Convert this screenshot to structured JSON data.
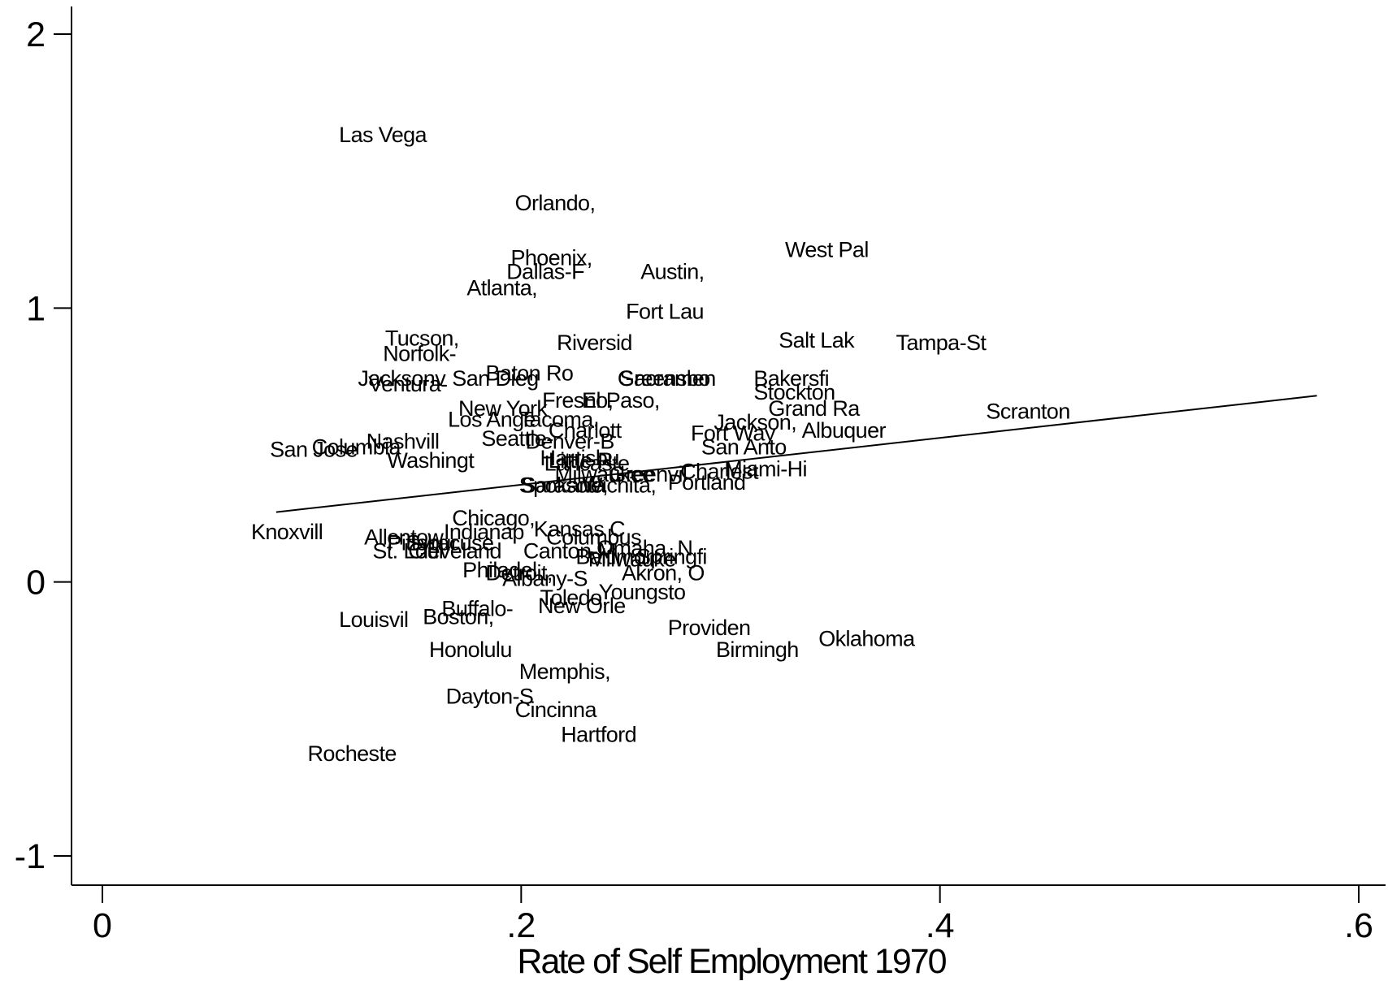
{
  "chart_data": {
    "type": "scatter",
    "xlabel": "Rate of Self Employment 1970",
    "ylabel": "",
    "xlim": [
      -0.014,
      0.612
    ],
    "ylim": [
      -1.11,
      2.1
    ],
    "xticks": [
      {
        "value": 0,
        "label": "0"
      },
      {
        "value": 0.2,
        "label": ".2"
      },
      {
        "value": 0.4,
        "label": ".4"
      },
      {
        "value": 0.6,
        "label": ".6"
      }
    ],
    "yticks": [
      {
        "value": -1,
        "label": "-1"
      },
      {
        "value": 0,
        "label": "0"
      },
      {
        "value": 1,
        "label": "1"
      },
      {
        "value": 2,
        "label": "2"
      }
    ],
    "fit_line": {
      "x": [
        0.083,
        0.58
      ],
      "y": [
        0.255,
        0.68
      ]
    },
    "points": [
      {
        "label": "Las Vega",
        "x": 0.113,
        "y": 1.633
      },
      {
        "label": "Orlando,",
        "x": 0.197,
        "y": 1.383
      },
      {
        "label": "West Pal",
        "x": 0.326,
        "y": 1.213
      },
      {
        "label": "Phoenix,",
        "x": 0.195,
        "y": 1.183
      },
      {
        "label": "Dallas-F",
        "x": 0.193,
        "y": 1.133
      },
      {
        "label": "Austin,",
        "x": 0.257,
        "y": 1.133
      },
      {
        "label": "Atlanta,",
        "x": 0.174,
        "y": 1.073
      },
      {
        "label": "Fort Lau",
        "x": 0.25,
        "y": 0.987
      },
      {
        "label": "Tucson,",
        "x": 0.135,
        "y": 0.89
      },
      {
        "label": "Salt Lak",
        "x": 0.323,
        "y": 0.883
      },
      {
        "label": "Riversid",
        "x": 0.217,
        "y": 0.873
      },
      {
        "label": "Tampa-St",
        "x": 0.379,
        "y": 0.873
      },
      {
        "label": "Norfolk-",
        "x": 0.134,
        "y": 0.833
      },
      {
        "label": "Baton Ro",
        "x": 0.183,
        "y": 0.763
      },
      {
        "label": "Jacksonv",
        "x": 0.122,
        "y": 0.743
      },
      {
        "label": "San Dieg",
        "x": 0.167,
        "y": 0.743
      },
      {
        "label": "Greensbo",
        "x": 0.246,
        "y": 0.743
      },
      {
        "label": "Sacramen",
        "x": 0.247,
        "y": 0.743
      },
      {
        "label": "Bakersfi",
        "x": 0.311,
        "y": 0.743
      },
      {
        "label": "Ventura-",
        "x": 0.127,
        "y": 0.723
      },
      {
        "label": "Stockton",
        "x": 0.311,
        "y": 0.693
      },
      {
        "label": "Fresno,",
        "x": 0.21,
        "y": 0.663
      },
      {
        "label": "El Paso,",
        "x": 0.229,
        "y": 0.663
      },
      {
        "label": "New York",
        "x": 0.17,
        "y": 0.633
      },
      {
        "label": "Grand Ra",
        "x": 0.318,
        "y": 0.633
      },
      {
        "label": "Scranton",
        "x": 0.422,
        "y": 0.623
      },
      {
        "label": "Los Ange",
        "x": 0.165,
        "y": 0.593
      },
      {
        "label": "Tacoma,",
        "x": 0.199,
        "y": 0.593
      },
      {
        "label": "Jackson,",
        "x": 0.292,
        "y": 0.583
      },
      {
        "label": "Charlott",
        "x": 0.213,
        "y": 0.553
      },
      {
        "label": "Albuquer",
        "x": 0.334,
        "y": 0.553
      },
      {
        "label": "Fort Way",
        "x": 0.281,
        "y": 0.543
      },
      {
        "label": "Nashvill",
        "x": 0.126,
        "y": 0.513
      },
      {
        "label": "Seattle-",
        "x": 0.181,
        "y": 0.523
      },
      {
        "label": "Denver-B",
        "x": 0.202,
        "y": 0.513
      },
      {
        "label": "San Jose",
        "x": 0.08,
        "y": 0.483
      },
      {
        "label": "Columbia",
        "x": 0.1,
        "y": 0.493
      },
      {
        "label": "San Anto",
        "x": 0.286,
        "y": 0.493
      },
      {
        "label": "Washingt",
        "x": 0.136,
        "y": 0.443
      },
      {
        "label": "Harrisbu",
        "x": 0.209,
        "y": 0.453
      },
      {
        "label": "Little R",
        "x": 0.213,
        "y": 0.443
      },
      {
        "label": "Lancaste",
        "x": 0.211,
        "y": 0.433
      },
      {
        "label": "Miami-Hi",
        "x": 0.297,
        "y": 0.413
      },
      {
        "label": "Charlest",
        "x": 0.276,
        "y": 0.403
      },
      {
        "label": "Milwaukee",
        "x": 0.216,
        "y": 0.393
      },
      {
        "label": "Greenvil",
        "x": 0.242,
        "y": 0.393
      },
      {
        "label": "Portland",
        "x": 0.27,
        "y": 0.363
      },
      {
        "label": "Spokane,",
        "x": 0.199,
        "y": 0.353
      },
      {
        "label": "Sarasota",
        "x": 0.2,
        "y": 0.353
      },
      {
        "label": "Wichita,",
        "x": 0.229,
        "y": 0.353
      },
      {
        "label": "Chicago,",
        "x": 0.167,
        "y": 0.233
      },
      {
        "label": "Kansas C",
        "x": 0.206,
        "y": 0.193
      },
      {
        "label": "Knoxvill",
        "x": 0.071,
        "y": 0.183
      },
      {
        "label": "Indianap",
        "x": 0.163,
        "y": 0.183
      },
      {
        "label": "Allentow",
        "x": 0.125,
        "y": 0.163
      },
      {
        "label": "Columbus",
        "x": 0.212,
        "y": 0.163
      },
      {
        "label": "Pittsbur",
        "x": 0.136,
        "y": 0.143
      },
      {
        "label": "Syracuse",
        "x": 0.145,
        "y": 0.143
      },
      {
        "label": "Omaha, N",
        "x": 0.236,
        "y": 0.123
      },
      {
        "label": "St. Loui",
        "x": 0.129,
        "y": 0.113
      },
      {
        "label": "Cleveland",
        "x": 0.146,
        "y": 0.113
      },
      {
        "label": "Canton-M",
        "x": 0.201,
        "y": 0.113
      },
      {
        "label": "Baltimor",
        "x": 0.226,
        "y": 0.093
      },
      {
        "label": "Springfi",
        "x": 0.255,
        "y": 0.093
      },
      {
        "label": "Milwauke",
        "x": 0.232,
        "y": 0.083
      },
      {
        "label": "Philadel",
        "x": 0.172,
        "y": 0.043
      },
      {
        "label": "Detroit,",
        "x": 0.183,
        "y": 0.033
      },
      {
        "label": "Akron, O",
        "x": 0.248,
        "y": 0.033
      },
      {
        "label": "Albany-S",
        "x": 0.191,
        "y": 0.013
      },
      {
        "label": "Youngsto",
        "x": 0.237,
        "y": -0.037
      },
      {
        "label": "Toledo,",
        "x": 0.209,
        "y": -0.057
      },
      {
        "label": "New Orle",
        "x": 0.208,
        "y": -0.087
      },
      {
        "label": "Buffalo-",
        "x": 0.162,
        "y": -0.097
      },
      {
        "label": "Louisvil",
        "x": 0.113,
        "y": -0.137
      },
      {
        "label": "Boston,",
        "x": 0.153,
        "y": -0.127
      },
      {
        "label": "Providen",
        "x": 0.27,
        "y": -0.167
      },
      {
        "label": "Oklahoma",
        "x": 0.342,
        "y": -0.207
      },
      {
        "label": "Birmingh",
        "x": 0.293,
        "y": -0.247
      },
      {
        "label": "Honolulu",
        "x": 0.156,
        "y": -0.247
      },
      {
        "label": "Memphis,",
        "x": 0.199,
        "y": -0.327
      },
      {
        "label": "Dayton-S",
        "x": 0.164,
        "y": -0.417
      },
      {
        "label": "Cincinna",
        "x": 0.197,
        "y": -0.467
      },
      {
        "label": "Hartford",
        "x": 0.219,
        "y": -0.557
      },
      {
        "label": "Rocheste",
        "x": 0.098,
        "y": -0.627
      }
    ]
  }
}
